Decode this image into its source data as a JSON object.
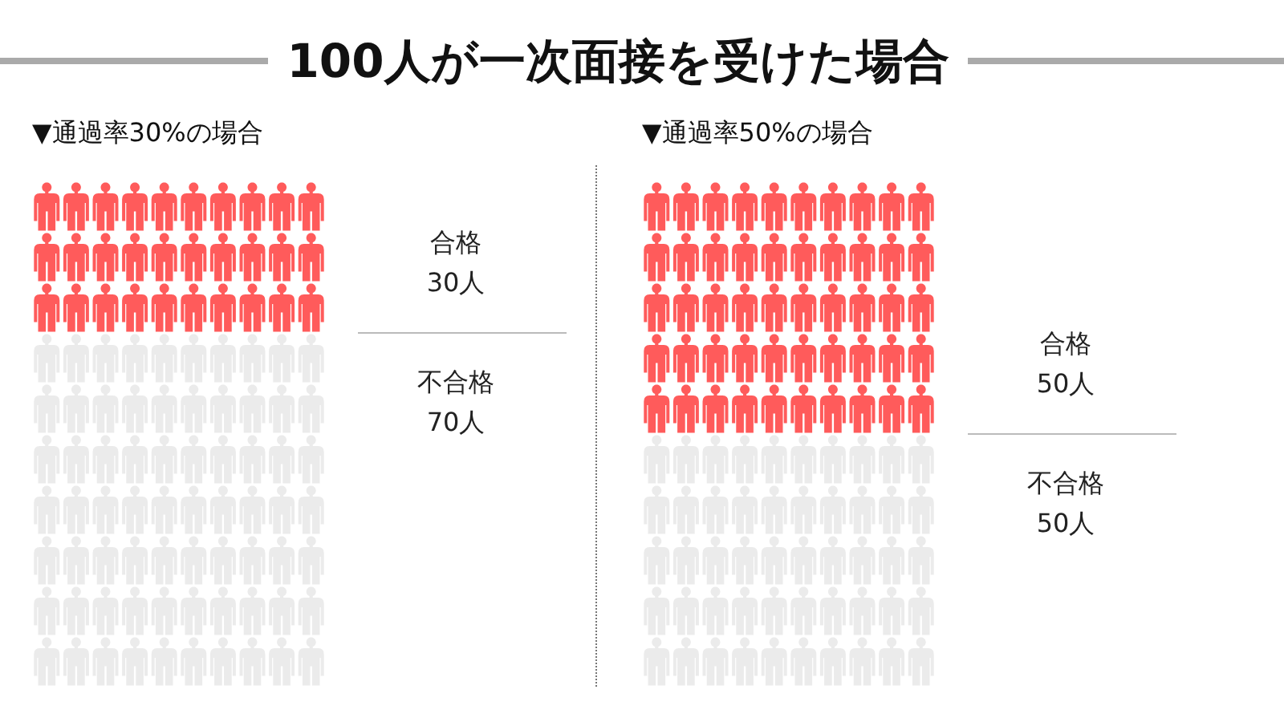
{
  "chart_data": {
    "type": "other",
    "title": "100人が一次面接を受けた場合",
    "categories": [
      "合格",
      "不合格"
    ],
    "colors": [
      "#ff5b5b",
      "#ebebeb"
    ],
    "series": [
      {
        "name": "▼通過率30%の場合",
        "values": [
          30,
          70
        ],
        "value_labels": [
          "30人",
          "70人"
        ]
      },
      {
        "name": "▼通過率50%の場合",
        "values": [
          50,
          50
        ],
        "value_labels": [
          "50人",
          "50人"
        ]
      }
    ]
  }
}
